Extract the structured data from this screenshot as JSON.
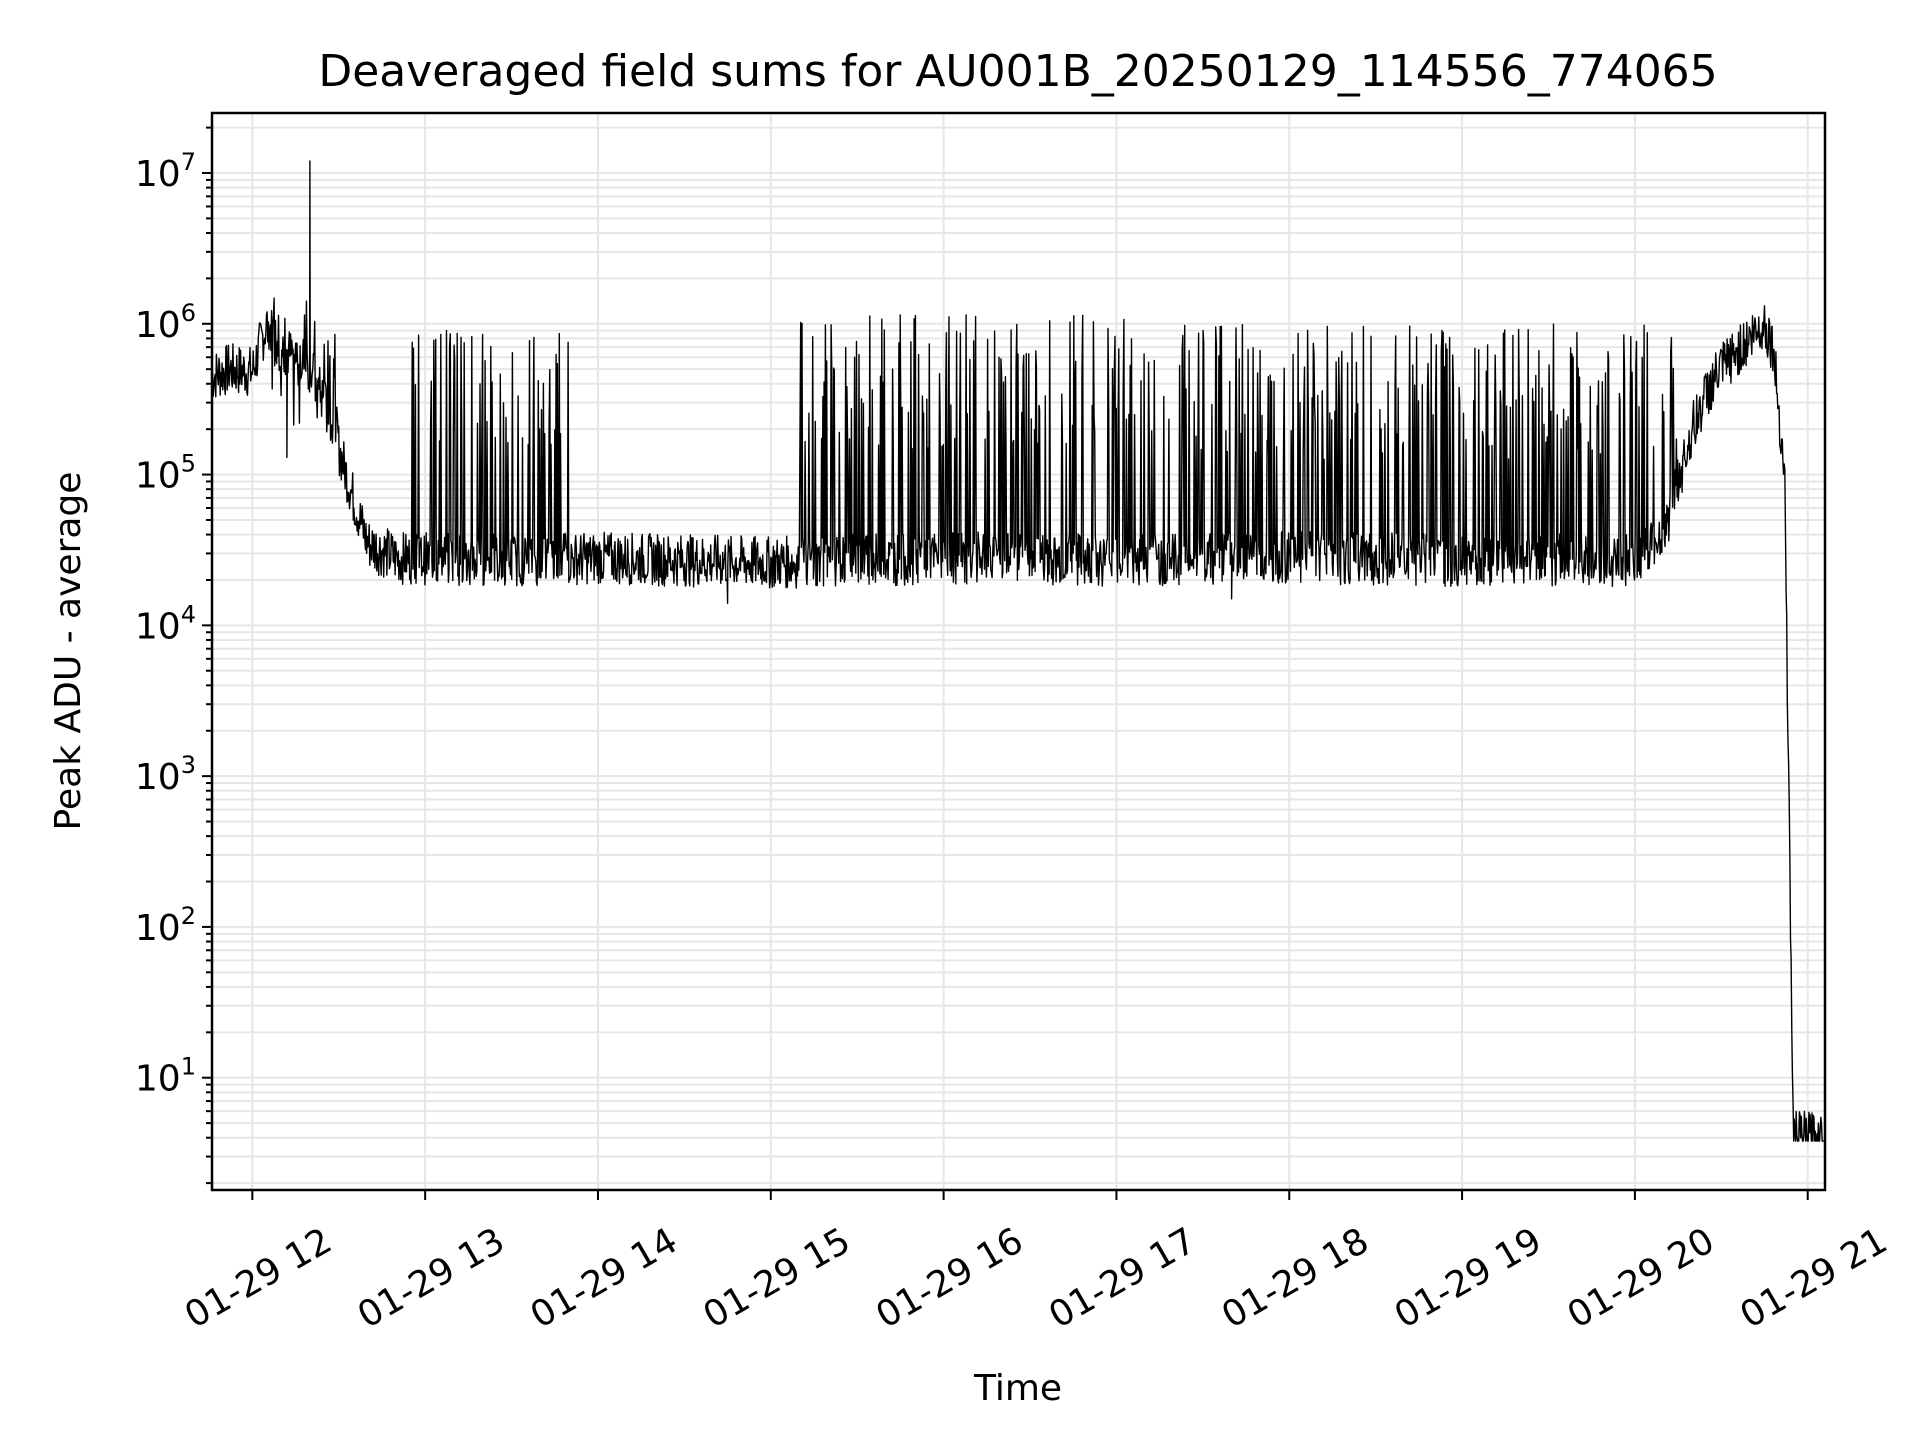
{
  "chart_data": {
    "type": "line",
    "title": "Deaveraged field sums for AU001B_20250129_114556_774065",
    "xlabel": "Time",
    "ylabel": "Peak ADU - average",
    "yscale": "log",
    "xlim": [
      "2025-01-29 11:46",
      "2025-01-29 21:06"
    ],
    "ylim": [
      1.8,
      25000000
    ],
    "x_tick_labels": [
      "01-29 12",
      "01-29 13",
      "01-29 14",
      "01-29 15",
      "01-29 16",
      "01-29 17",
      "01-29 18",
      "01-29 19",
      "01-29 20",
      "01-29 21"
    ],
    "y_tick_labels": [
      {
        "base": "10",
        "exp": "1"
      },
      {
        "base": "10",
        "exp": "2"
      },
      {
        "base": "10",
        "exp": "3"
      },
      {
        "base": "10",
        "exp": "4"
      },
      {
        "base": "10",
        "exp": "5"
      },
      {
        "base": "10",
        "exp": "6"
      },
      {
        "base": "10",
        "exp": "7"
      }
    ],
    "grid": true,
    "line_color": "#000000",
    "grid_color": "#e6e6e6",
    "series": [
      {
        "baseline": [
          [
            "2025-01-29 11:46",
            450000
          ],
          [
            "2025-01-29 11:52",
            500000
          ],
          [
            "2025-01-29 12:00",
            480000
          ],
          [
            "2025-01-29 12:05",
            1000000
          ],
          [
            "2025-01-29 12:10",
            700000
          ],
          [
            "2025-01-29 12:20",
            500000
          ],
          [
            "2025-01-29 12:25",
            300000
          ],
          [
            "2025-01-29 12:30",
            150000
          ],
          [
            "2025-01-29 12:35",
            70000
          ],
          [
            "2025-01-29 12:40",
            35000
          ],
          [
            "2025-01-29 12:50",
            28000
          ],
          [
            "2025-01-29 13:30",
            27000
          ],
          [
            "2025-01-29 14:00",
            28000
          ],
          [
            "2025-01-29 15:00",
            26000
          ],
          [
            "2025-01-29 16:00",
            28000
          ],
          [
            "2025-01-29 17:00",
            27000
          ],
          [
            "2025-01-29 18:00",
            28000
          ],
          [
            "2025-01-29 19:00",
            27000
          ],
          [
            "2025-01-29 20:00",
            27000
          ],
          [
            "2025-01-29 20:10",
            40000
          ],
          [
            "2025-01-29 20:15",
            90000
          ],
          [
            "2025-01-29 20:20",
            200000
          ],
          [
            "2025-01-29 20:25",
            350000
          ],
          [
            "2025-01-29 20:30",
            500000
          ],
          [
            "2025-01-29 20:40",
            800000
          ],
          [
            "2025-01-29 20:45",
            1000000
          ],
          [
            "2025-01-29 20:48",
            700000
          ],
          [
            "2025-01-29 20:52",
            100000
          ],
          [
            "2025-01-29 20:55",
            4
          ],
          [
            "2025-01-29 21:06",
            4
          ]
        ],
        "spike_bands": [
          {
            "from": "2025-01-29 12:05",
            "to": "2025-01-29 12:30",
            "peak": 1600000
          },
          {
            "from": "2025-01-29 12:55",
            "to": "2025-01-29 13:50",
            "peak": 1100000
          },
          {
            "from": "2025-01-29 15:10",
            "to": "2025-01-29 17:20",
            "peak": 1150000
          },
          {
            "from": "2025-01-29 17:20",
            "to": "2025-01-29 18:00",
            "peak": 1000000
          },
          {
            "from": "2025-01-29 18:00",
            "to": "2025-01-29 20:15",
            "peak": 1000000
          }
        ],
        "notable_points": [
          [
            "2025-01-29 12:20",
            12000000
          ],
          [
            "2025-01-29 12:12",
            130000
          ],
          [
            "2025-01-29 17:40",
            15000
          ],
          [
            "2025-01-29 14:45",
            14000
          ]
        ]
      }
    ]
  }
}
